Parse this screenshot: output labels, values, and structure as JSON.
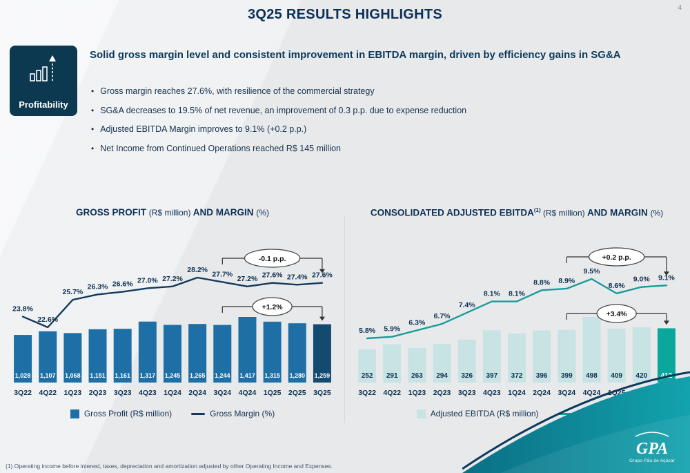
{
  "page": {
    "number": "4",
    "title": "3Q25 RESULTS HIGHLIGHTS"
  },
  "highlight": {
    "badge": "Profitability",
    "headline": "Solid gross margin level and consistent improvement in EBITDA margin, driven by efficiency gains in SG&A",
    "bullets": [
      "Gross margin reaches 27.6%, with resilience of the commercial strategy",
      "SG&A decreases to 19.5% of net revenue, an improvement of 0.3 p.p. due to expense reduction",
      "Adjusted EBITDA Margin improves to 9.1% (+0.2 p.p.)",
      "Net Income from Continued Operations reached R$ 145 million"
    ]
  },
  "chart_data": [
    {
      "id": "gross",
      "type": "bar",
      "title_segments": [
        {
          "text": "GROSS PROFIT ",
          "style": "bold"
        },
        {
          "text": "(R$ million) ",
          "style": "normal"
        },
        {
          "text": "AND MARGIN ",
          "style": "bold"
        },
        {
          "text": "(%)",
          "style": "normal"
        }
      ],
      "categories": [
        "3Q22",
        "4Q22",
        "1Q23",
        "2Q23",
        "3Q23",
        "4Q23",
        "1Q24",
        "2Q24",
        "3Q24",
        "4Q24",
        "1Q25",
        "2Q25",
        "3Q25"
      ],
      "series": [
        {
          "name": "Gross Profit (R$ million)",
          "type": "bar",
          "values": [
            1028,
            1107,
            1068,
            1151,
            1161,
            1317,
            1245,
            1265,
            1244,
            1417,
            1315,
            1280,
            1259
          ],
          "labels": [
            "1,028",
            "1,107",
            "1,068",
            "1,151",
            "1,161",
            "1,317",
            "1,245",
            "1,265",
            "1,244",
            "1,417",
            "1,315",
            "1,280",
            "1,259"
          ]
        },
        {
          "name": "Gross Margin (%)",
          "type": "line",
          "values": [
            23.8,
            22.6,
            25.7,
            26.3,
            26.6,
            27.0,
            27.2,
            28.2,
            27.7,
            27.2,
            27.6,
            27.4,
            27.6
          ],
          "labels": [
            "23.8%",
            "22.6%",
            "25.7%",
            "26.3%",
            "26.6%",
            "27.0%",
            "27.2%",
            "28.2%",
            "27.7%",
            "27.2%",
            "27.6%",
            "27.4%",
            "27.6%"
          ]
        }
      ],
      "highlight_last_bar": true,
      "annotations": [
        {
          "text": "-0.1 p.p.",
          "from": "3Q24",
          "to": "3Q25",
          "target": "line"
        },
        {
          "text": "+1.2%",
          "from": "3Q24",
          "to": "3Q25",
          "target": "bars"
        }
      ],
      "colors": {
        "bar": "#1d6fa5",
        "bar_highlight": "#134a70",
        "line": "#14395a",
        "bar_label": "#ffffff",
        "bar_label_highlight": "#ffffff"
      },
      "legend": [
        {
          "label": "Gross Profit (R$ million)",
          "swatch": "square",
          "color": "#1d6fa5"
        },
        {
          "label": "Gross Margin (%)",
          "swatch": "line",
          "color": "#14395a"
        }
      ]
    },
    {
      "id": "ebitda",
      "type": "bar",
      "title_segments": [
        {
          "text": "CONSOLIDATED ADJUSTED EBITDA",
          "style": "bold"
        },
        {
          "text": "(1)",
          "style": "sup"
        },
        {
          "text": " (R$ million) ",
          "style": "normal"
        },
        {
          "text": "AND MARGIN ",
          "style": "bold"
        },
        {
          "text": "(%)",
          "style": "normal"
        }
      ],
      "categories": [
        "3Q22",
        "4Q22",
        "1Q23",
        "2Q23",
        "3Q23",
        "4Q23",
        "1Q24",
        "2Q24",
        "3Q24",
        "4Q24",
        "1Q25",
        "2Q25",
        "3Q25"
      ],
      "series": [
        {
          "name": "Adjusted EBITDA (R$ million)",
          "type": "bar",
          "values": [
            252,
            291,
            263,
            294,
            326,
            397,
            372,
            396,
            399,
            498,
            409,
            420,
            412
          ],
          "labels": [
            "252",
            "291",
            "263",
            "294",
            "326",
            "397",
            "372",
            "396",
            "399",
            "498",
            "409",
            "420",
            "412"
          ]
        },
        {
          "name": "Margin (%)",
          "type": "line",
          "values": [
            5.8,
            5.9,
            6.3,
            6.7,
            7.4,
            8.1,
            8.1,
            8.8,
            8.9,
            9.5,
            8.6,
            9.0,
            9.1
          ],
          "labels": [
            "5.8%",
            "5.9%",
            "6.3%",
            "6.7%",
            "7.4%",
            "8.1%",
            "8.1%",
            "8.8%",
            "8.9%",
            "9.5%",
            "8.6%",
            "9.0%",
            "9.1%"
          ]
        }
      ],
      "highlight_last_bar": true,
      "annotations": [
        {
          "text": "+0.2 p.p.",
          "from": "3Q24",
          "to": "3Q25",
          "target": "line"
        },
        {
          "text": "+3.4%",
          "from": "3Q24",
          "to": "3Q25",
          "target": "bars"
        }
      ],
      "colors": {
        "bar": "#c7e3e3",
        "bar_highlight": "#0ba79d",
        "line": "#189b9b",
        "bar_label": "#0e3050",
        "bar_label_highlight": "#ffffff"
      },
      "legend": [
        {
          "label": "Adjusted EBITDA (R$ million)",
          "swatch": "square",
          "color": "#c7e3e3"
        },
        {
          "label": "Margin (%)",
          "swatch": "line",
          "color": "#189b9b"
        }
      ]
    }
  ],
  "footnote": "(1) Operating income before interest, taxes, depreciation and amortization adjusted by other Operating Income and Expenses.",
  "logo": {
    "name": "GPA",
    "subtext": "Grupo Pão de Açúcar"
  }
}
